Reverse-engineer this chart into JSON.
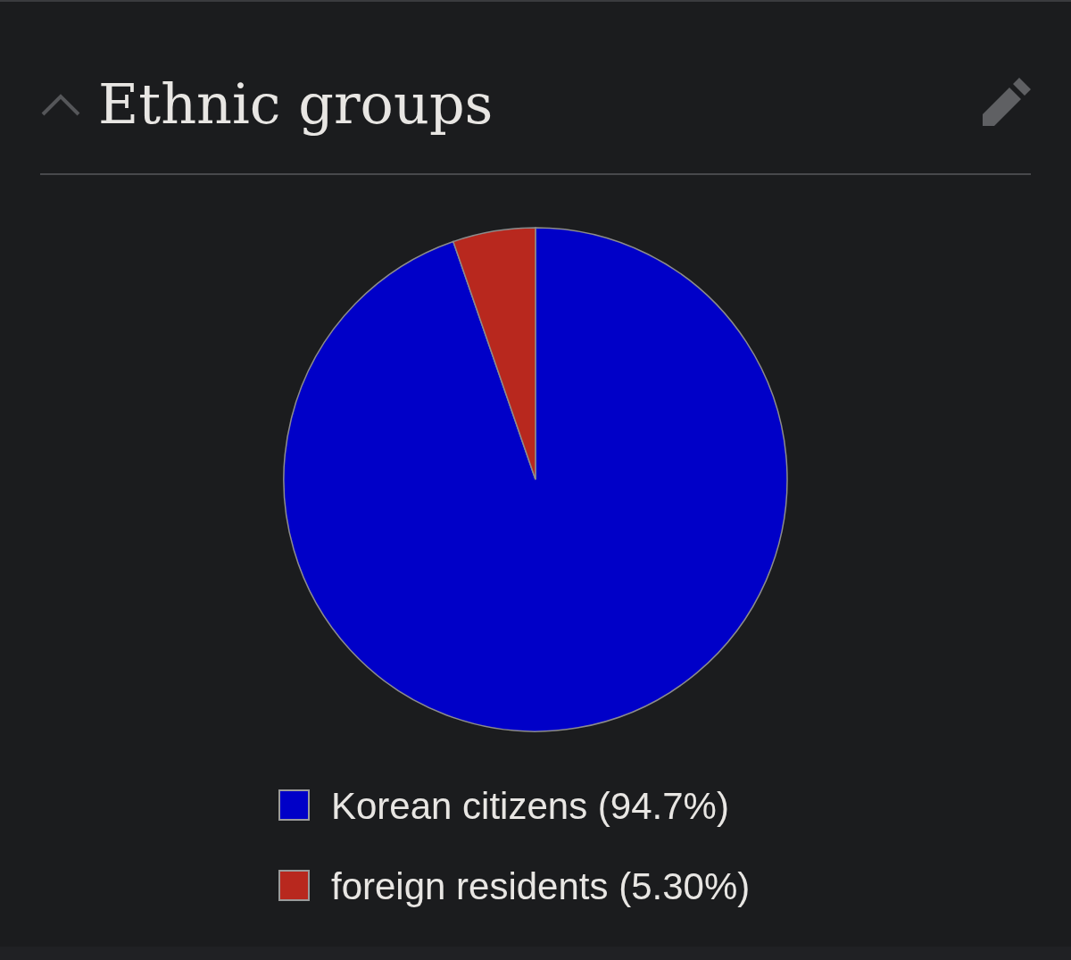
{
  "chart_data": {
    "type": "pie",
    "title": "Ethnic groups",
    "categories": [
      "Korean citizens (94.7%)",
      "foreign residents (5.30%)"
    ],
    "values": [
      94.7,
      5.3
    ],
    "colors": [
      "#0000c8",
      "#b8281e"
    ],
    "legend": "bottom"
  }
}
